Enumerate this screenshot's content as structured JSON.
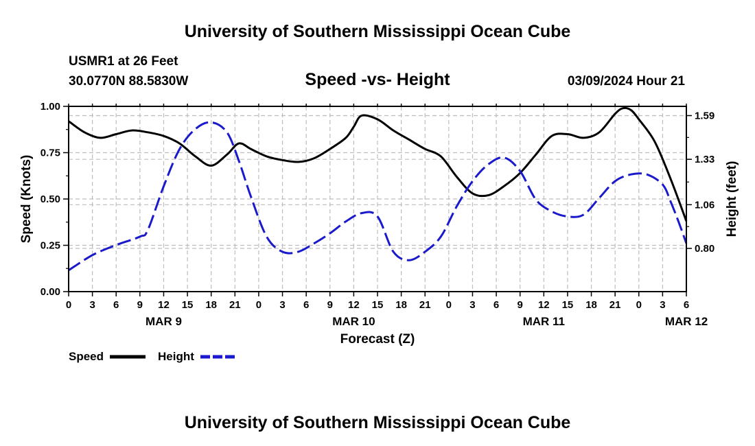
{
  "page": {
    "title": "University of Southern Mississippi Ocean Cube",
    "footer_title": "University of Southern Mississippi Ocean Cube"
  },
  "header": {
    "station": "USMR1 at 26 Feet",
    "location": "30.0770N  88.5830W",
    "plot_title": "Speed -vs- Height",
    "datetime": "03/09/2024 Hour 21"
  },
  "legend": {
    "speed_label": "Speed",
    "height_label": "Height"
  },
  "colors": {
    "speed": "#000000",
    "height": "#1a1acc",
    "grid": "#bdbdbd"
  },
  "chart_data": {
    "type": "line",
    "title": "Speed -vs- Height",
    "xlabel": "Forecast (Z)",
    "ylabel_left": "Speed (Knots)",
    "ylabel_right": "Height (feet)",
    "x_unit": "hours from MAR 9 00Z",
    "xlim": [
      0,
      78
    ],
    "ylim_left": [
      0,
      1.0
    ],
    "ylim_right": [
      0.543,
      1.645
    ],
    "x_tick_labels": [
      "0",
      "3",
      "6",
      "9",
      "12",
      "15",
      "18",
      "21",
      "0",
      "3",
      "6",
      "9",
      "12",
      "15",
      "18",
      "21",
      "0",
      "3",
      "6",
      "9",
      "12",
      "15",
      "18",
      "21",
      "0",
      "3",
      "6"
    ],
    "y_left_ticks": [
      {
        "value": 0.0,
        "label": "0.00"
      },
      {
        "value": 0.25,
        "label": "0.25"
      },
      {
        "value": 0.5,
        "label": "0.50"
      },
      {
        "value": 0.75,
        "label": "0.75"
      },
      {
        "value": 1.0,
        "label": "1.00"
      }
    ],
    "y_right_ticks": [
      {
        "value": 0.8,
        "label": "0.80"
      },
      {
        "value": 1.06,
        "label": "1.06"
      },
      {
        "value": 1.33,
        "label": "1.33"
      },
      {
        "value": 1.59,
        "label": "1.59"
      }
    ],
    "day_labels": [
      {
        "hour": 12,
        "label": "MAR 9"
      },
      {
        "hour": 36,
        "label": "MAR 10"
      },
      {
        "hour": 60,
        "label": "MAR 11"
      },
      {
        "hour": 78,
        "label": "MAR 12"
      }
    ],
    "series": [
      {
        "name": "Speed",
        "axis": "left",
        "style": "solid",
        "x": [
          0,
          2,
          4,
          6,
          8,
          10,
          12,
          14,
          16,
          18,
          20,
          21.5,
          23,
          25,
          27,
          29,
          31,
          33,
          35,
          36,
          37,
          39,
          41,
          43,
          45,
          47,
          49,
          51,
          53,
          55,
          57,
          59,
          61,
          63,
          65,
          67,
          69,
          70,
          71,
          72,
          74,
          76,
          78
        ],
        "values": [
          0.92,
          0.86,
          0.83,
          0.85,
          0.87,
          0.86,
          0.84,
          0.8,
          0.73,
          0.68,
          0.74,
          0.8,
          0.77,
          0.73,
          0.71,
          0.7,
          0.72,
          0.77,
          0.83,
          0.89,
          0.95,
          0.93,
          0.87,
          0.82,
          0.77,
          0.73,
          0.62,
          0.53,
          0.52,
          0.57,
          0.64,
          0.74,
          0.84,
          0.85,
          0.83,
          0.86,
          0.96,
          0.99,
          0.98,
          0.93,
          0.81,
          0.61,
          0.38
        ]
      },
      {
        "name": "Height",
        "axis": "right",
        "style": "dashed",
        "x": [
          0,
          3,
          6,
          9,
          10,
          12,
          14,
          16,
          18,
          20,
          21.5,
          23,
          25,
          27,
          29,
          31,
          33,
          35,
          37,
          39,
          41,
          43,
          45,
          47,
          49,
          51,
          53,
          55,
          57,
          59,
          61,
          63,
          65,
          67,
          69,
          71,
          73,
          75,
          76,
          77,
          78
        ],
        "values": [
          0.67,
          0.76,
          0.82,
          0.87,
          0.91,
          1.17,
          1.39,
          1.51,
          1.55,
          1.49,
          1.32,
          1.11,
          0.87,
          0.78,
          0.78,
          0.83,
          0.89,
          0.96,
          1.01,
          0.99,
          0.78,
          0.73,
          0.78,
          0.87,
          1.05,
          1.2,
          1.3,
          1.34,
          1.26,
          1.09,
          1.02,
          0.99,
          1.0,
          1.1,
          1.2,
          1.24,
          1.24,
          1.18,
          1.08,
          0.96,
          0.83
        ]
      }
    ]
  }
}
